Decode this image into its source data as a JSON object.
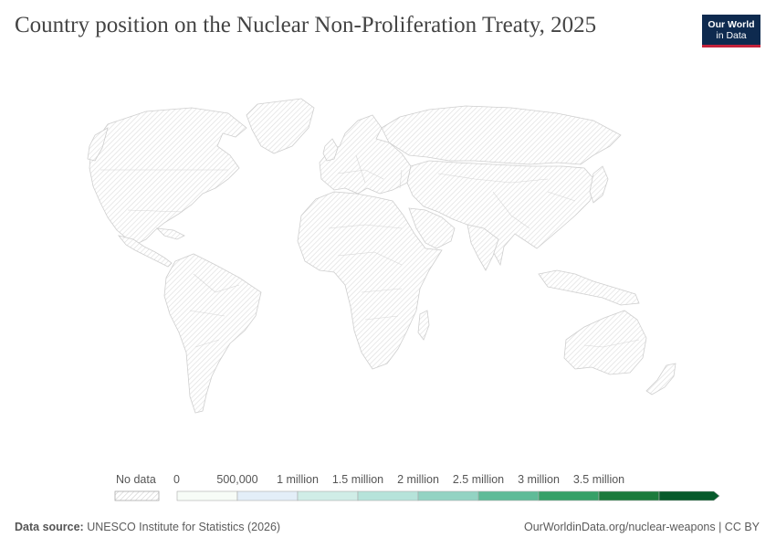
{
  "header": {
    "title": "Country position on the Nuclear Non-Proliferation Treaty, 2025",
    "logo_line1": "Our World",
    "logo_line2": "in Data"
  },
  "map": {
    "all_countries": "No data"
  },
  "legend": {
    "no_data_label": "No data",
    "ticks": [
      "0",
      "500,000",
      "1 million",
      "1.5 million",
      "2 million",
      "2.5 million",
      "3 million",
      "3.5 million"
    ],
    "bin_colors": [
      "#f7fcf7",
      "#e3eef8",
      "#d0ede7",
      "#b6e3da",
      "#93d3c3",
      "#5fbb98",
      "#36a068",
      "#1c7a3c",
      "#075a2b"
    ]
  },
  "footer": {
    "source_label": "Data source:",
    "source_text": "UNESCO Institute for Statistics (2026)",
    "url_text": "OurWorldinData.org/nuclear-weapons | CC BY"
  }
}
